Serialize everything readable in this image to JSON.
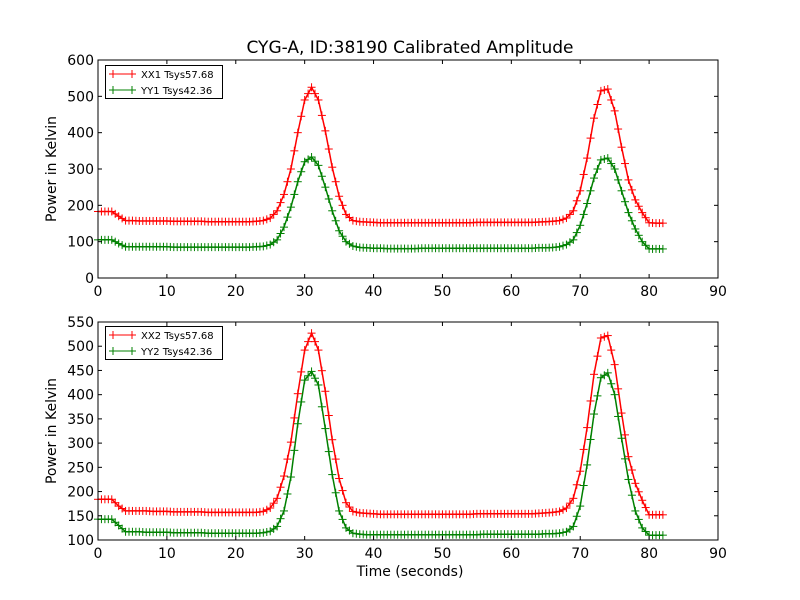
{
  "chart_data": [
    {
      "type": "line",
      "title": "CYG-A, ID:38190 Calibrated Amplitude",
      "xlabel": "",
      "ylabel": "Power in Kelvin",
      "xlim": [
        0,
        90
      ],
      "ylim": [
        0,
        600
      ],
      "xticks": [
        "0",
        "10",
        "20",
        "30",
        "40",
        "50",
        "60",
        "70",
        "80",
        "90"
      ],
      "yticks": [
        "0",
        "100",
        "200",
        "300",
        "400",
        "500",
        "600"
      ],
      "legend_position": "top-left",
      "grid": false,
      "x": [
        0,
        1,
        2,
        3,
        4,
        5,
        6,
        7,
        8,
        9,
        10,
        11,
        12,
        13,
        14,
        15,
        16,
        17,
        18,
        19,
        20,
        21,
        22,
        23,
        24,
        25,
        26,
        27,
        28,
        29,
        30,
        31,
        32,
        33,
        34,
        35,
        36,
        37,
        38,
        39,
        40,
        41,
        42,
        43,
        44,
        45,
        46,
        47,
        48,
        49,
        50,
        51,
        52,
        53,
        54,
        55,
        56,
        57,
        58,
        59,
        60,
        61,
        62,
        63,
        64,
        65,
        66,
        67,
        68,
        69,
        70,
        71,
        72,
        73,
        74,
        75,
        76,
        77,
        78,
        79,
        80,
        81,
        82
      ],
      "series": [
        {
          "name": "XX1 Tsys57.68",
          "color": "#ff0000",
          "values": [
            183,
            183,
            183,
            170,
            158,
            158,
            157,
            157,
            157,
            157,
            157,
            156,
            156,
            156,
            156,
            156,
            155,
            155,
            155,
            155,
            155,
            155,
            155,
            156,
            158,
            165,
            185,
            230,
            300,
            400,
            490,
            525,
            490,
            405,
            305,
            225,
            175,
            158,
            155,
            154,
            153,
            152,
            152,
            152,
            152,
            152,
            152,
            152,
            152,
            152,
            152,
            152,
            152,
            152,
            152,
            153,
            153,
            153,
            153,
            153,
            153,
            153,
            153,
            153,
            154,
            155,
            156,
            158,
            165,
            185,
            240,
            330,
            440,
            515,
            520,
            460,
            360,
            270,
            215,
            180,
            152,
            151,
            151
          ]
        },
        {
          "name": "YY1 Tsys42.36",
          "color": "#008000",
          "values": [
            105,
            105,
            105,
            95,
            86,
            86,
            86,
            86,
            86,
            86,
            86,
            85,
            85,
            85,
            85,
            85,
            85,
            85,
            85,
            85,
            85,
            85,
            85,
            86,
            87,
            92,
            105,
            140,
            195,
            265,
            320,
            333,
            310,
            250,
            185,
            130,
            100,
            88,
            84,
            83,
            82,
            82,
            81,
            81,
            81,
            81,
            81,
            82,
            82,
            82,
            82,
            82,
            82,
            82,
            82,
            82,
            82,
            82,
            82,
            82,
            82,
            82,
            82,
            82,
            83,
            83,
            84,
            86,
            92,
            105,
            145,
            205,
            275,
            325,
            330,
            300,
            240,
            180,
            135,
            100,
            80,
            80,
            80
          ]
        }
      ]
    },
    {
      "type": "line",
      "title": "",
      "xlabel": "Time (seconds)",
      "ylabel": "Power in Kelvin",
      "xlim": [
        0,
        90
      ],
      "ylim": [
        100,
        550
      ],
      "xticks": [
        "0",
        "10",
        "20",
        "30",
        "40",
        "50",
        "60",
        "70",
        "80",
        "90"
      ],
      "yticks": [
        "100",
        "150",
        "200",
        "250",
        "300",
        "350",
        "400",
        "450",
        "500",
        "550"
      ],
      "legend_position": "top-left",
      "grid": false,
      "x": [
        0,
        1,
        2,
        3,
        4,
        5,
        6,
        7,
        8,
        9,
        10,
        11,
        12,
        13,
        14,
        15,
        16,
        17,
        18,
        19,
        20,
        21,
        22,
        23,
        24,
        25,
        26,
        27,
        28,
        29,
        30,
        31,
        32,
        33,
        34,
        35,
        36,
        37,
        38,
        39,
        40,
        41,
        42,
        43,
        44,
        45,
        46,
        47,
        48,
        49,
        50,
        51,
        52,
        53,
        54,
        55,
        56,
        57,
        58,
        59,
        60,
        61,
        62,
        63,
        64,
        65,
        66,
        67,
        68,
        69,
        70,
        71,
        72,
        73,
        74,
        75,
        76,
        77,
        78,
        79,
        80,
        81,
        82
      ],
      "series": [
        {
          "name": "XX2 Tsys57.68",
          "color": "#ff0000",
          "values": [
            184,
            184,
            184,
            170,
            160,
            160,
            160,
            160,
            159,
            159,
            159,
            158,
            158,
            158,
            158,
            158,
            157,
            157,
            157,
            157,
            157,
            157,
            157,
            157,
            159,
            166,
            186,
            232,
            302,
            402,
            492,
            527,
            492,
            407,
            307,
            227,
            177,
            159,
            156,
            155,
            154,
            153,
            153,
            153,
            153,
            153,
            153,
            153,
            153,
            153,
            153,
            153,
            153,
            153,
            153,
            154,
            154,
            154,
            154,
            154,
            154,
            154,
            154,
            154,
            155,
            156,
            157,
            159,
            166,
            186,
            242,
            332,
            442,
            517,
            522,
            462,
            362,
            272,
            217,
            182,
            152,
            152,
            152
          ]
        },
        {
          "name": "YY2 Tsys42.36",
          "color": "#008000",
          "values": [
            143,
            143,
            143,
            130,
            117,
            117,
            117,
            116,
            116,
            116,
            116,
            115,
            115,
            115,
            115,
            115,
            114,
            114,
            114,
            114,
            114,
            114,
            114,
            114,
            115,
            118,
            128,
            160,
            230,
            340,
            430,
            448,
            420,
            330,
            235,
            160,
            125,
            114,
            112,
            111,
            111,
            111,
            111,
            111,
            111,
            111,
            111,
            111,
            111,
            111,
            111,
            111,
            111,
            111,
            111,
            111,
            112,
            112,
            112,
            112,
            112,
            112,
            112,
            112,
            112,
            113,
            113,
            114,
            117,
            128,
            170,
            255,
            360,
            435,
            445,
            400,
            310,
            225,
            160,
            125,
            110,
            110,
            110
          ]
        }
      ]
    }
  ]
}
